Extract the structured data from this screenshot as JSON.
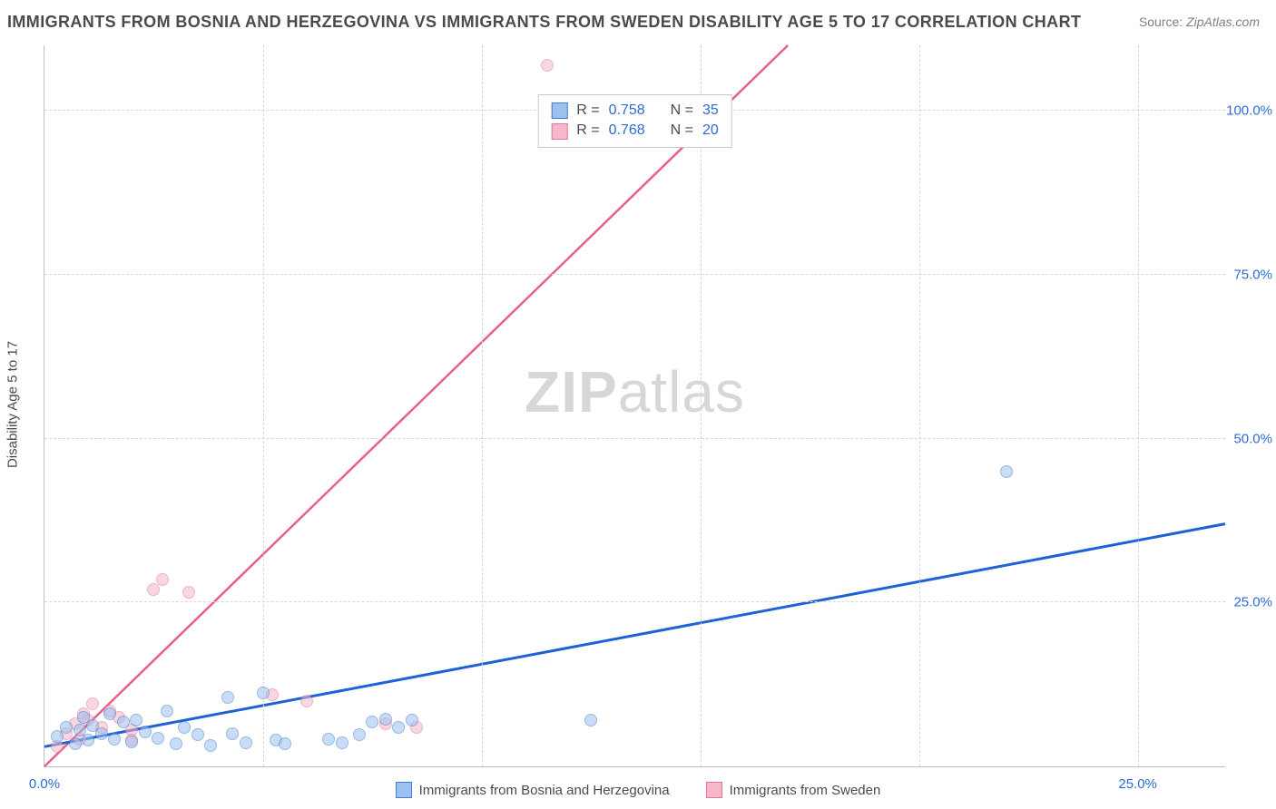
{
  "title": "IMMIGRANTS FROM BOSNIA AND HERZEGOVINA VS IMMIGRANTS FROM SWEDEN DISABILITY AGE 5 TO 17 CORRELATION CHART",
  "source_prefix": "Source: ",
  "source_link": "ZipAtlas.com",
  "ylabel": "Disability Age 5 to 17",
  "watermark_bold": "ZIP",
  "watermark_rest": "atlas",
  "chart": {
    "type": "scatter",
    "background_color": "#ffffff",
    "grid_color": "#d8d8d8",
    "axis_color": "#bfbfbf",
    "tick_label_color": "#2d6cd2",
    "xlim": [
      0,
      27
    ],
    "ylim": [
      0,
      110
    ],
    "xticks": [
      0,
      25
    ],
    "yticks": [
      25,
      50,
      75,
      100
    ],
    "xtick_vlines": [
      5,
      10,
      15,
      20,
      25
    ],
    "xtick_labels": [
      "0.0%",
      "25.0%"
    ],
    "ytick_labels": [
      "25.0%",
      "50.0%",
      "75.0%",
      "100.0%"
    ],
    "marker_size": 14,
    "marker_opacity": 0.55,
    "line_width_blue": 3,
    "line_width_pink": 2.5,
    "series": [
      {
        "id": "bosnia",
        "label": "Immigrants from Bosnia and Herzegovina",
        "fill": "#9dc1ee",
        "stroke": "#3f7fd1",
        "r_value": "0.758",
        "n_value": "35",
        "trend_color": "#1f61d6",
        "trend": {
          "x1": 0,
          "y1": 3,
          "x2": 27,
          "y2": 37
        },
        "points": [
          [
            0.3,
            4.5
          ],
          [
            0.5,
            6.0
          ],
          [
            0.7,
            3.5
          ],
          [
            0.8,
            5.5
          ],
          [
            0.9,
            7.5
          ],
          [
            1.0,
            4.0
          ],
          [
            1.1,
            6.2
          ],
          [
            1.3,
            5.0
          ],
          [
            1.5,
            8.0
          ],
          [
            1.6,
            4.2
          ],
          [
            1.8,
            6.8
          ],
          [
            2.0,
            3.8
          ],
          [
            2.1,
            7.0
          ],
          [
            2.3,
            5.2
          ],
          [
            2.6,
            4.3
          ],
          [
            2.8,
            8.5
          ],
          [
            3.0,
            3.4
          ],
          [
            3.2,
            6.0
          ],
          [
            3.5,
            4.8
          ],
          [
            3.8,
            3.2
          ],
          [
            4.2,
            10.5
          ],
          [
            4.3,
            5.0
          ],
          [
            4.6,
            3.6
          ],
          [
            5.0,
            11.2
          ],
          [
            5.3,
            4.0
          ],
          [
            5.5,
            3.4
          ],
          [
            6.5,
            4.2
          ],
          [
            6.8,
            3.6
          ],
          [
            7.2,
            4.8
          ],
          [
            7.5,
            6.8
          ],
          [
            7.8,
            7.2
          ],
          [
            8.1,
            6.0
          ],
          [
            8.4,
            7.0
          ],
          [
            12.5,
            7.0
          ],
          [
            22.0,
            45.0
          ]
        ]
      },
      {
        "id": "sweden",
        "label": "Immigrants from Sweden",
        "fill": "#f5b8c9",
        "stroke": "#e5739a",
        "r_value": "0.768",
        "n_value": "20",
        "trend_color": "#ea5e8a",
        "trend": {
          "x1": 0,
          "y1": 0,
          "x2": 17,
          "y2": 110
        },
        "points": [
          [
            0.3,
            3.0
          ],
          [
            0.5,
            5.0
          ],
          [
            0.7,
            6.5
          ],
          [
            0.8,
            4.2
          ],
          [
            0.9,
            8.0
          ],
          [
            1.0,
            7.0
          ],
          [
            1.1,
            9.5
          ],
          [
            1.3,
            6.0
          ],
          [
            1.5,
            8.5
          ],
          [
            1.7,
            7.5
          ],
          [
            2.0,
            5.5
          ],
          [
            2.0,
            4.0
          ],
          [
            2.5,
            27.0
          ],
          [
            2.7,
            28.5
          ],
          [
            3.3,
            26.5
          ],
          [
            5.2,
            11.0
          ],
          [
            6.0,
            10.0
          ],
          [
            7.8,
            6.5
          ],
          [
            11.5,
            107.0
          ],
          [
            8.5,
            6.0
          ]
        ]
      }
    ]
  },
  "legend_top": {
    "r_label": "R =",
    "n_label": "N ="
  }
}
